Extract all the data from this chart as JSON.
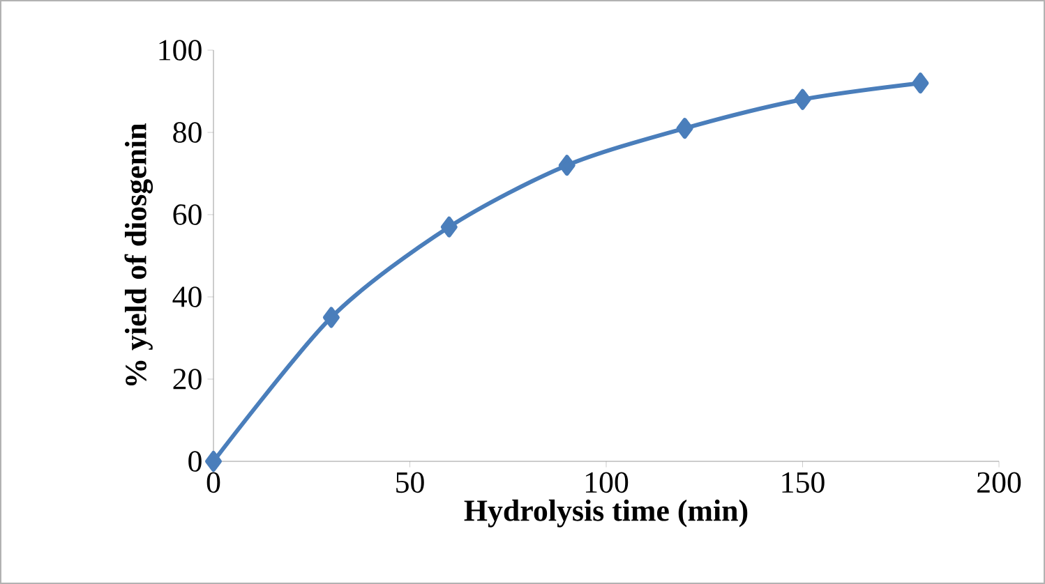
{
  "chart_data": {
    "type": "line",
    "xlabel": "Hydrolysis time (min)",
    "ylabel": "% yield of diosgenin",
    "x": [
      0,
      30,
      60,
      90,
      120,
      150,
      180
    ],
    "values": [
      0,
      35,
      57,
      72,
      81,
      88,
      92
    ],
    "color": "#4a7ebb",
    "marker": "diamond",
    "line_style": "solid",
    "xlim": [
      0,
      200
    ],
    "ylim": [
      0,
      100
    ],
    "xticks": [
      0,
      50,
      100,
      150,
      200
    ],
    "yticks": [
      0,
      20,
      40,
      60,
      80,
      100
    ]
  }
}
